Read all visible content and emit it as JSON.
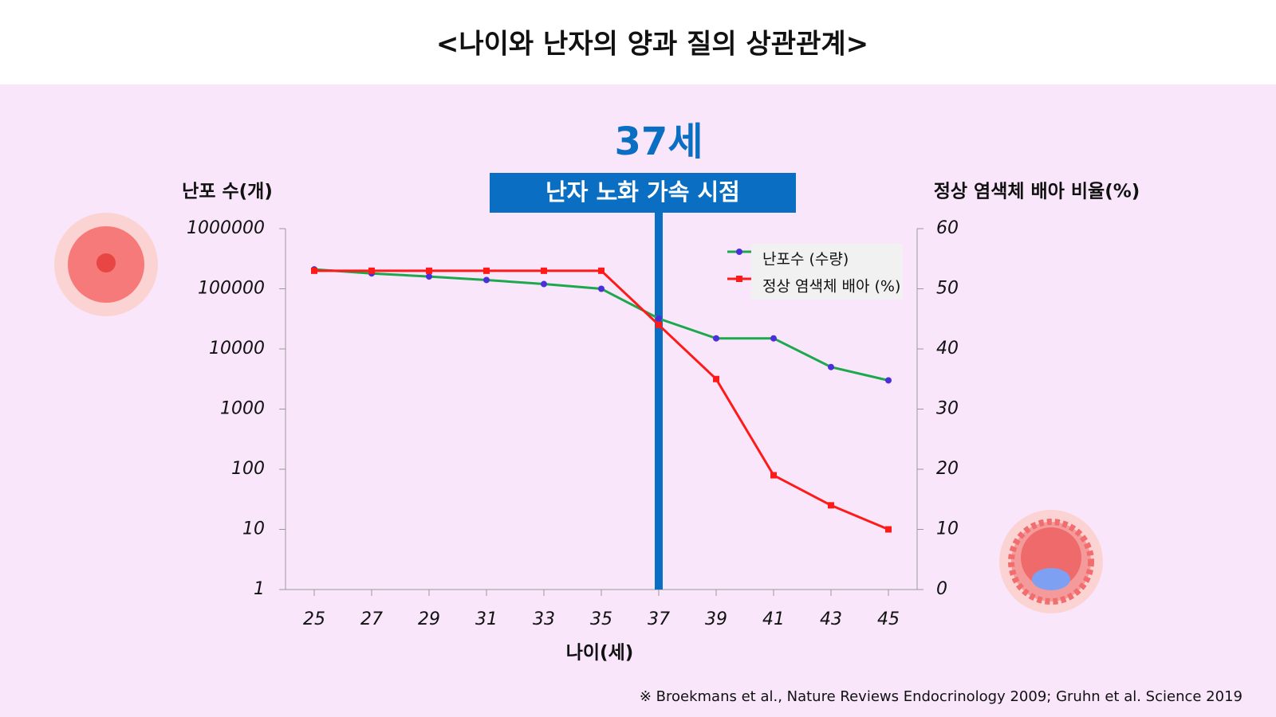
{
  "title": "<나이와 난자의 양과 질의 상관관계>",
  "footnote": "※ Broekmans et al., Nature Reviews Endocrinology 2009; Gruhn et al. Science 2019",
  "chart_data": {
    "type": "line",
    "x_label": "나이(세)",
    "y_label": "난포 수(개)",
    "y2_label": "정상 염색체 배아 비율(%)",
    "x": [
      25,
      27,
      29,
      31,
      33,
      35,
      37,
      39,
      41,
      43,
      45
    ],
    "xlim": [
      24,
      46
    ],
    "xticks": [
      25,
      27,
      29,
      31,
      33,
      35,
      37,
      39,
      41,
      43,
      45
    ],
    "ylim": [
      1,
      1000000
    ],
    "yticks": [
      1,
      10,
      100,
      1000,
      10000,
      100000,
      1000000
    ],
    "y_scale": "log",
    "y2lim": [
      0,
      60
    ],
    "y2ticks": [
      0,
      10,
      20,
      30,
      40,
      50,
      60
    ],
    "legend": "top-right",
    "series": [
      {
        "name": "난포수 (수량)",
        "color": "#1ea84e",
        "marker_color": "#4b2fd8",
        "values": [
          210000,
          180000,
          160000,
          140000,
          120000,
          100000,
          32000,
          15000,
          15000,
          5000,
          3000
        ]
      },
      {
        "name": "정상 염색체 배아 (%)",
        "color": "#ff1a1a",
        "marker_color": "#ff1a1a",
        "axis": "y2",
        "values": [
          53,
          53,
          53,
          53,
          53,
          53,
          44,
          35,
          19,
          14,
          10
        ]
      }
    ],
    "highlight": {
      "x": 37,
      "title": "37세",
      "label": "난자 노화 가속 시점",
      "color": "#0a6fc2"
    }
  }
}
